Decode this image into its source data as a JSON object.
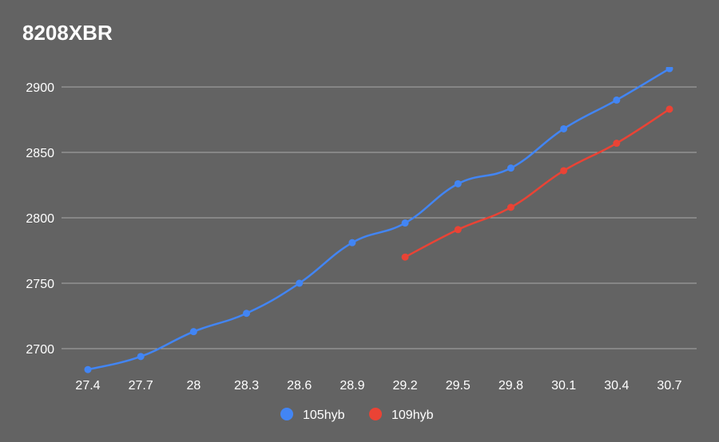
{
  "chart_data": {
    "type": "line",
    "title": "8208XBR",
    "xlabel": "",
    "ylabel": "",
    "categories": [
      "27.4",
      "27.7",
      "28",
      "28.3",
      "28.6",
      "28.9",
      "29.2",
      "29.5",
      "29.8",
      "30.1",
      "30.4",
      "30.7"
    ],
    "y_ticks": [
      2700,
      2750,
      2800,
      2850,
      2900
    ],
    "ylim": [
      2684,
      2914
    ],
    "grid": true,
    "legend_position": "bottom",
    "series": [
      {
        "name": "105hyb",
        "color": "#4285f4",
        "values": [
          2684,
          2694,
          2713,
          2727,
          2750,
          2781,
          2796,
          2826,
          2838,
          2868,
          2890,
          2914
        ]
      },
      {
        "name": "109hyb",
        "color": "#ea4335",
        "values": [
          null,
          null,
          null,
          null,
          null,
          null,
          2770,
          2791,
          2808,
          2836,
          2857,
          2883
        ]
      }
    ]
  }
}
